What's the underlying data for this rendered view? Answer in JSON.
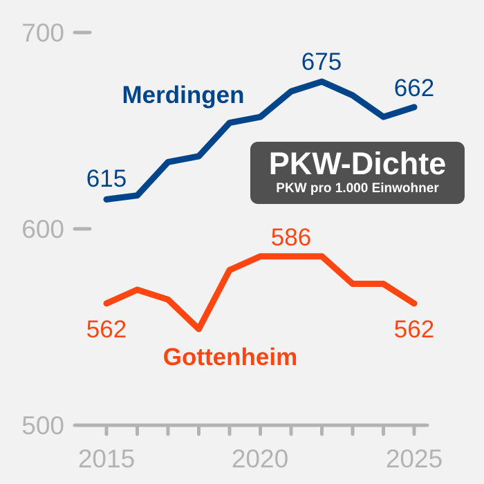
{
  "chart_data": {
    "type": "line",
    "title": "PKW-Dichte",
    "subtitle": "PKW pro 1.000 Einwohner",
    "xlabel": "",
    "ylabel": "",
    "x": [
      2015,
      2016,
      2017,
      2018,
      2019,
      2020,
      2021,
      2022,
      2023,
      2024,
      2025
    ],
    "x_tick_labels": [
      "2015",
      "2020",
      "2025"
    ],
    "y_tick_labels": [
      "700",
      "600",
      "500"
    ],
    "ylim": [
      500,
      700
    ],
    "grid": false,
    "legend": "inline labels",
    "series": [
      {
        "name": "Merdingen",
        "color": "#004589",
        "values": [
          615,
          617,
          634,
          637,
          654,
          657,
          670,
          675,
          668,
          657,
          662
        ],
        "annotations": [
          {
            "label": "615",
            "x": 2015
          },
          {
            "label": "675",
            "x": 2022
          },
          {
            "label": "662",
            "x": 2025
          }
        ]
      },
      {
        "name": "Gottenheim",
        "color": "#ff4612",
        "values": [
          562,
          569,
          564,
          549,
          579,
          586,
          586,
          586,
          572,
          572,
          562
        ],
        "annotations": [
          {
            "label": "562",
            "x": 2015
          },
          {
            "label": "586",
            "x": 2021
          },
          {
            "label": "562",
            "x": 2025
          }
        ]
      }
    ]
  },
  "axis": {
    "color": "#b3b3b3"
  },
  "title_box": {
    "title": "PKW-Dichte",
    "subtitle": "PKW pro 1.000 Einwohner",
    "background": "#505050"
  }
}
